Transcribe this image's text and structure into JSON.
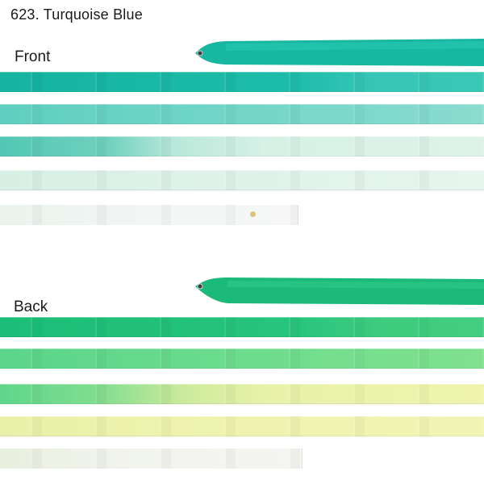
{
  "title": "623. Turquoise Blue",
  "sections": {
    "front": {
      "label": "Front"
    },
    "back": {
      "label": "Back"
    }
  },
  "colors": {
    "front": [
      "#1bb9a6",
      "#7fd8c9",
      "#e9f4ef"
    ],
    "back": [
      "#1fbe7d",
      "#86e08a",
      "#eef2b8",
      "#f7f7f0"
    ],
    "background": "#ffffff"
  }
}
